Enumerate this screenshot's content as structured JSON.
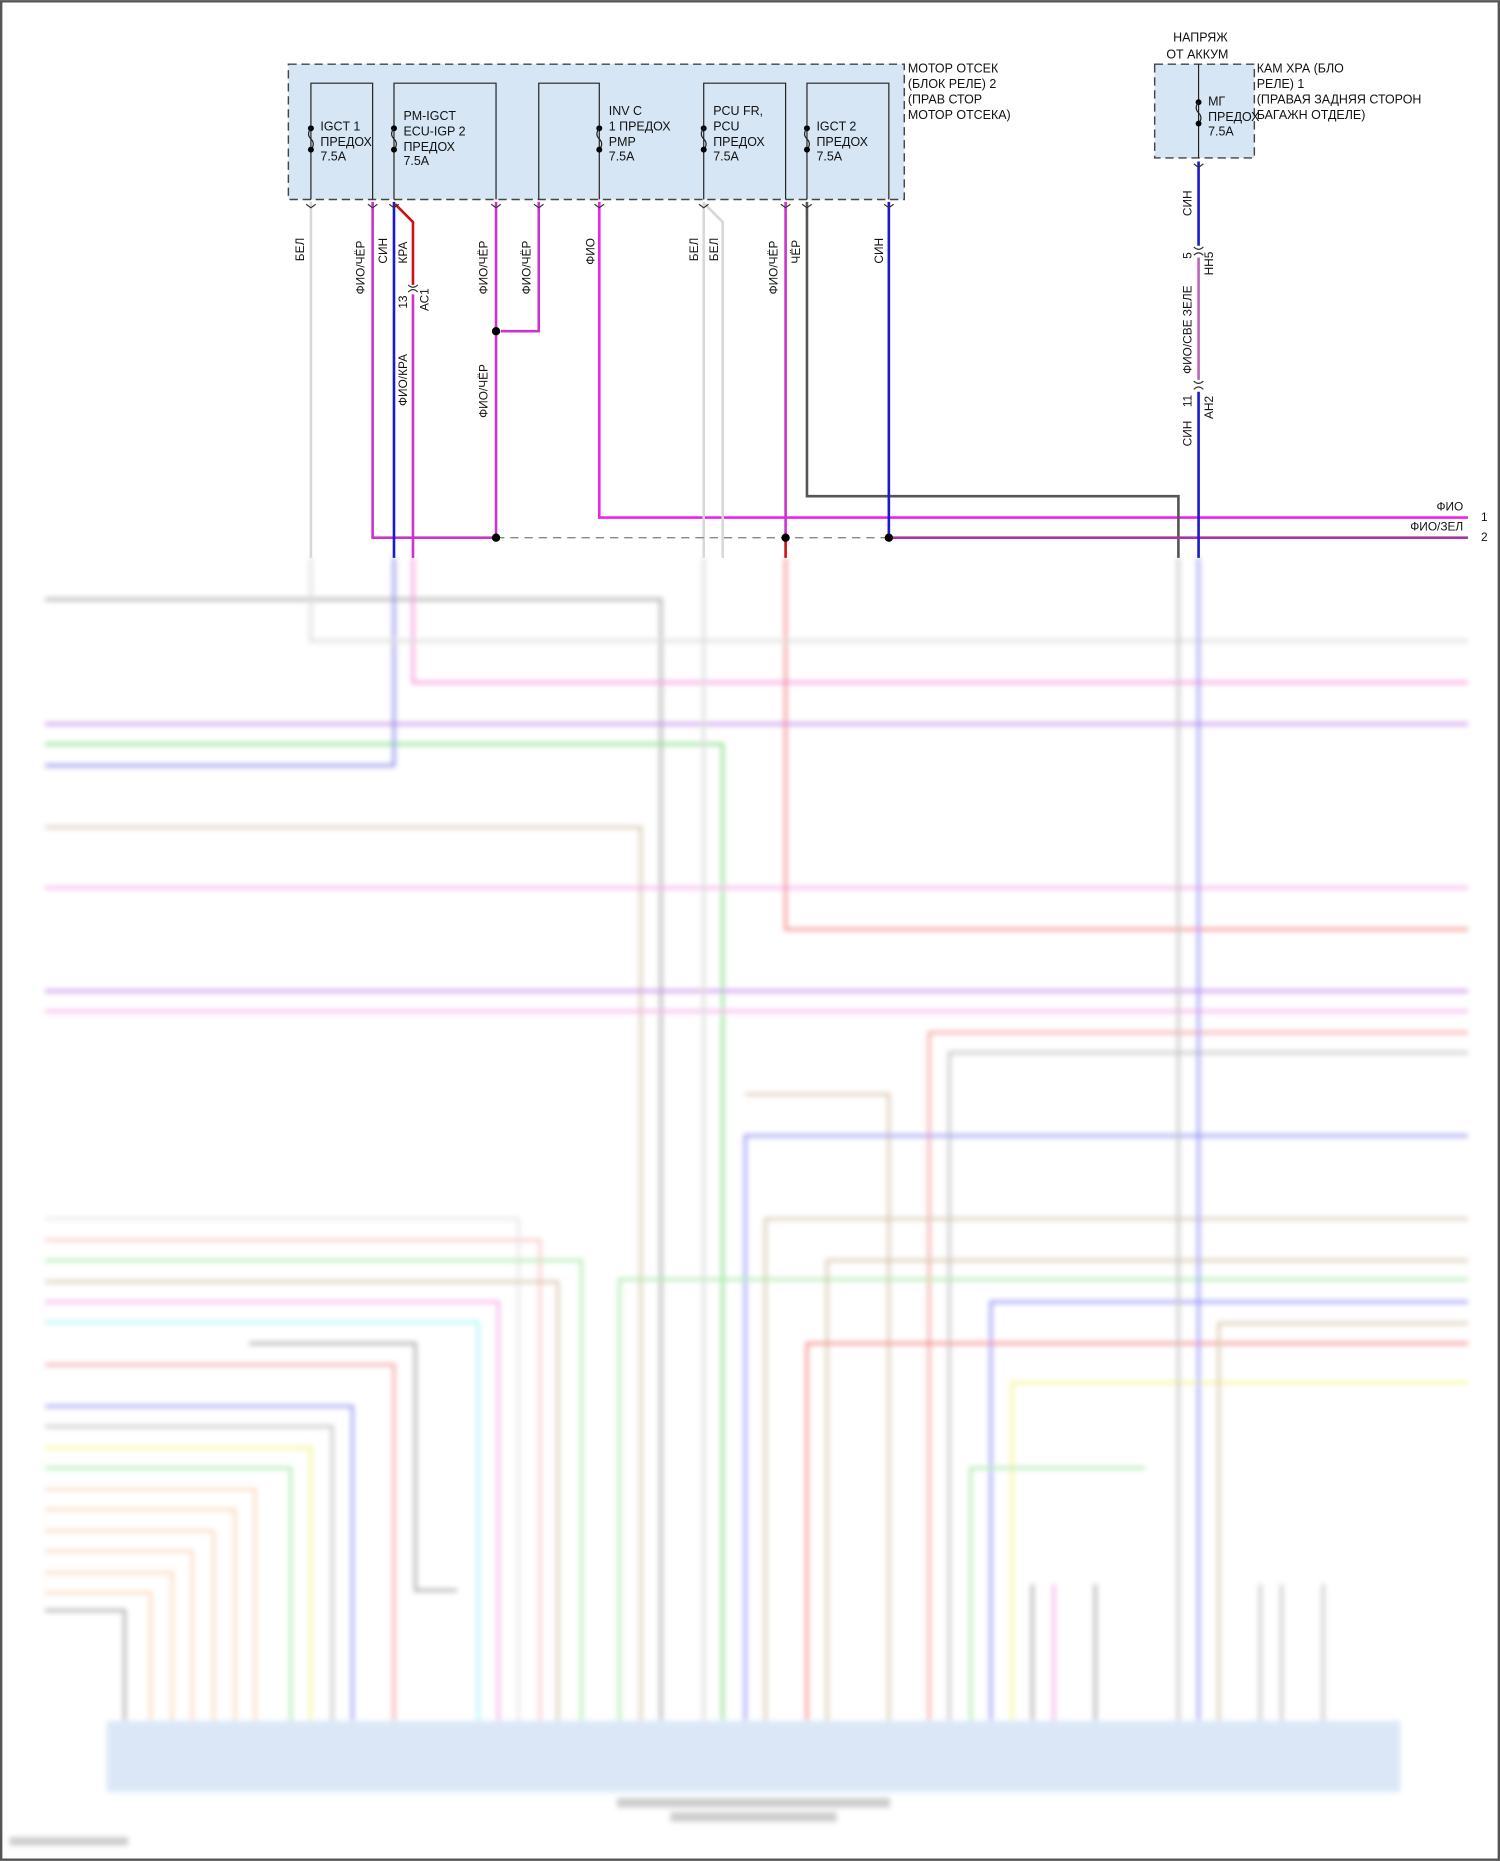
{
  "relay_block_2": {
    "label_lines": [
      "МОТОР ОТСЕК",
      "(БЛОК РЕЛЕ) 2",
      "(ПРАВ СТОР",
      "МОТОР ОТСЕКА)"
    ],
    "fuses": [
      {
        "lines": [
          "IGCT 1",
          "ПРЕДОХ",
          "7.5A"
        ]
      },
      {
        "lines": [
          "PM-IGCT",
          "ECU-IGP 2",
          "ПРЕДОХ",
          "7.5A"
        ]
      },
      {
        "lines": [
          "INV C",
          "1 ПРЕДОХ",
          "PMP",
          "7.5A"
        ]
      },
      {
        "lines": [
          "PCU FR,",
          "PCU",
          "ПРЕДОХ",
          "7.5A"
        ]
      },
      {
        "lines": [
          "IGCT 2",
          "ПРЕДОХ",
          "7.5A"
        ]
      }
    ]
  },
  "relay_block_1": {
    "supply_lines": [
      "НАПРЯЖ",
      "ОТ АККУМ"
    ],
    "label_lines": [
      "КАМ ХРА (БЛО",
      "РЕЛЕ) 1",
      "(ПРАВАЯ ЗАДНЯЯ СТОРОН",
      "БАГАЖН ОТДЕЛЕ)"
    ],
    "fuse": {
      "lines": [
        "МГ",
        "ПРЕДОХ",
        "7.5A"
      ]
    }
  },
  "wire_labels": {
    "w1": "БЕЛ",
    "w2": "ФИО/ЧЁР",
    "w3": "СИН",
    "w4": "КРА",
    "w5": "ФИО/ЧЁР",
    "w6": "ФИО/ЧЁР",
    "w7": "ФИО",
    "w8": "БЕЛ",
    "w9": "БЕЛ",
    "w10": "ФИО/ЧЁР",
    "w11": "ЧЁР",
    "w12": "СИН",
    "w13": "ФИО/КРА",
    "w14": "ФИО/ЧЁР",
    "r1": "СИН",
    "r2": "ФИО/СВЕ ЗЕЛЕ",
    "r3": "СИН"
  },
  "connectors": {
    "ac1": {
      "pin": "13",
      "name": "АС1"
    },
    "hh5": {
      "pin": "5",
      "name": "НН5"
    },
    "ah2": {
      "pin": "11",
      "name": "АН2"
    }
  },
  "outputs": [
    {
      "color_label": "ФИО",
      "pin": "1"
    },
    {
      "color_label": "ФИО/ЗЕЛ",
      "pin": "2"
    }
  ],
  "colors": {
    "violet": "#cc33cc",
    "blue": "#1a1acc",
    "red": "#cc1111",
    "white": "#d8d8d8",
    "black": "#555555",
    "box_fill": "#d6e6f5"
  }
}
